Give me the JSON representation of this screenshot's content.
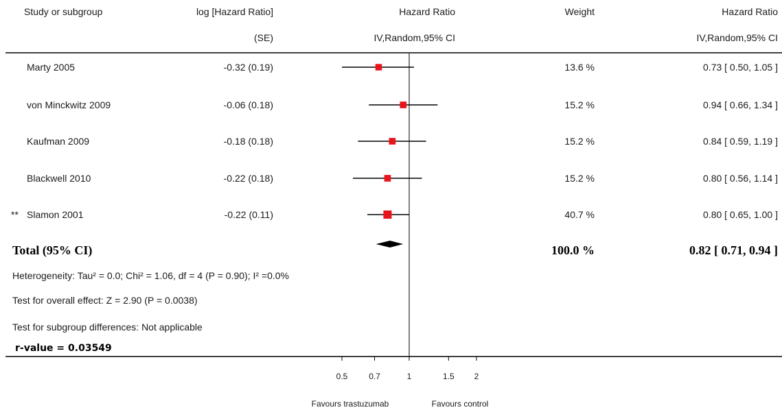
{
  "chart_data": {
    "type": "forest",
    "headers": {
      "study": "Study or subgroup",
      "loghr_line1": "log [Hazard Ratio]",
      "loghr_line2": "(SE)",
      "plot_line1": "Hazard Ratio",
      "plot_line2": "IV,Random,95% CI",
      "weight": "Weight",
      "ci_line1": "Hazard Ratio",
      "ci_line2": "IV,Random,95% CI"
    },
    "studies": [
      {
        "name": "Marty 2005",
        "marker": "",
        "loghr_se": "-0.32 (0.19)",
        "weight": "13.6 %",
        "ci_text": "0.73 [ 0.50, 1.05 ]",
        "hr": 0.73,
        "lower": 0.5,
        "upper": 1.05,
        "weight_pct": 13.6
      },
      {
        "name": "von Minckwitz 2009",
        "marker": "",
        "loghr_se": "-0.06 (0.18)",
        "weight": "15.2 %",
        "ci_text": "0.94 [ 0.66, 1.34 ]",
        "hr": 0.94,
        "lower": 0.66,
        "upper": 1.34,
        "weight_pct": 15.2
      },
      {
        "name": "Kaufman 2009",
        "marker": "",
        "loghr_se": "-0.18 (0.18)",
        "weight": "15.2 %",
        "ci_text": "0.84 [ 0.59, 1.19 ]",
        "hr": 0.84,
        "lower": 0.59,
        "upper": 1.19,
        "weight_pct": 15.2
      },
      {
        "name": "Blackwell 2010",
        "marker": "",
        "loghr_se": "-0.22 (0.18)",
        "weight": "15.2 %",
        "ci_text": "0.80 [ 0.56, 1.14 ]",
        "hr": 0.8,
        "lower": 0.56,
        "upper": 1.14,
        "weight_pct": 15.2
      },
      {
        "name": "Slamon 2001",
        "marker": "**",
        "loghr_se": "-0.22 (0.11)",
        "weight": "40.7 %",
        "ci_text": "0.80 [ 0.65, 1.00 ]",
        "hr": 0.8,
        "lower": 0.65,
        "upper": 1.0,
        "weight_pct": 40.7
      }
    ],
    "total": {
      "label": "Total (95% CI)",
      "weight": "100.0 %",
      "ci_text": "0.82 [ 0.71, 0.94 ]",
      "hr": 0.82,
      "lower": 0.71,
      "upper": 0.94
    },
    "footnotes": {
      "heterogeneity": "Heterogeneity: Tau² = 0.0; Chi² = 1.06, df = 4 (P = 0.90); I² =0.0%",
      "overall": "Test for overall effect: Z = 2.90 (P = 0.0038)",
      "subgroup": "Test for subgroup differences: Not applicable",
      "r_value": "r-value = 0.03549"
    },
    "x_axis": {
      "scale": "log",
      "ticks": [
        0.5,
        0.7,
        1,
        1.5,
        2
      ],
      "tick_labels": [
        "0.5",
        "0.7",
        "1",
        "1.5",
        "2"
      ],
      "reference": 1,
      "favours_left": "Favours trastuzumab",
      "favours_right": "Favours control"
    },
    "colors": {
      "marker": "#e8141c",
      "line": "#000000",
      "diamond": "#000000"
    }
  }
}
